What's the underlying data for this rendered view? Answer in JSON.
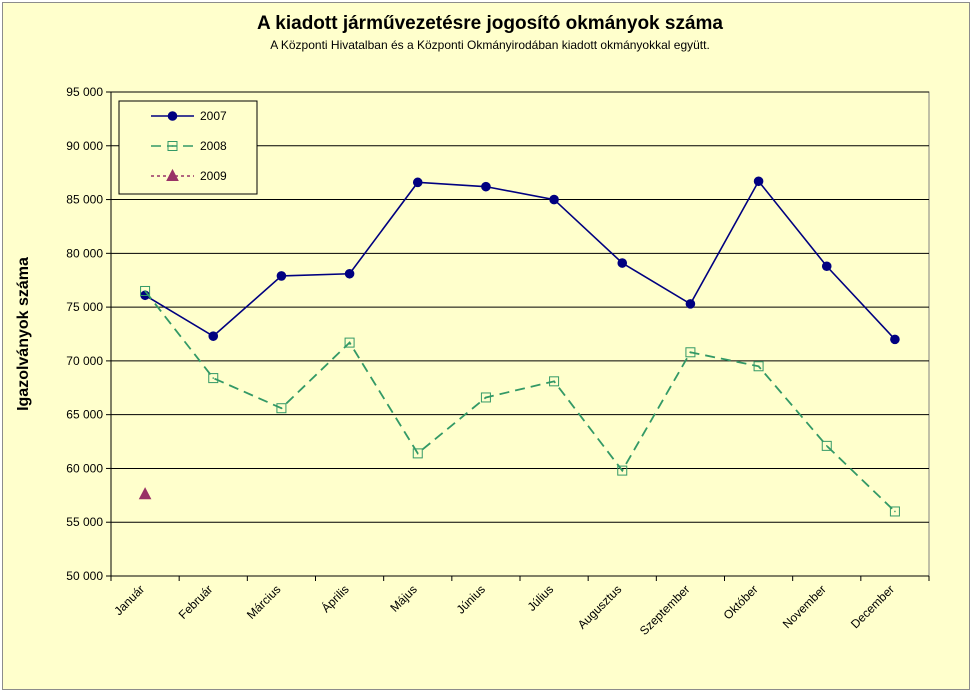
{
  "chart_data": {
    "type": "line",
    "title": "A  kiadott járművezetésre  jogosító okmányok száma",
    "subtitle": "A  Központi Hivatalban és a Központi Okmányirodában kiadott okmányokkal együtt.",
    "xlabel": "",
    "ylabel": "Igazolványok száma",
    "ylim": [
      50000,
      95000
    ],
    "y_ticks": [
      50000,
      55000,
      60000,
      65000,
      70000,
      75000,
      80000,
      85000,
      90000,
      95000
    ],
    "y_tick_labels": [
      "50 000",
      "55 000",
      "60 000",
      "65 000",
      "70 000",
      "75 000",
      "80 000",
      "85 000",
      "90 000",
      "95 000"
    ],
    "grid": true,
    "legend_position": "top-left",
    "categories": [
      "Január",
      "Február",
      "Március",
      "Április",
      "Május",
      "Június",
      "Július",
      "Augusztus",
      "Szeptember",
      "Október",
      "November",
      "December"
    ],
    "series": [
      {
        "name": "2007",
        "color": "#000080",
        "line_style": "solid",
        "marker": "filled-circle",
        "values": [
          76100,
          72300,
          77900,
          78100,
          86600,
          86200,
          85000,
          79100,
          75300,
          86700,
          78800,
          72000
        ]
      },
      {
        "name": "2008",
        "color": "#339966",
        "line_style": "dashed",
        "marker": "open-square",
        "values": [
          76500,
          68400,
          65600,
          71700,
          61400,
          66600,
          68100,
          59800,
          70800,
          69500,
          62100,
          56000
        ]
      },
      {
        "name": "2009",
        "color": "#993366",
        "line_style": "dotted",
        "marker": "filled-triangle",
        "values": [
          57600,
          null,
          null,
          null,
          null,
          null,
          null,
          null,
          null,
          null,
          null,
          null
        ]
      }
    ]
  }
}
